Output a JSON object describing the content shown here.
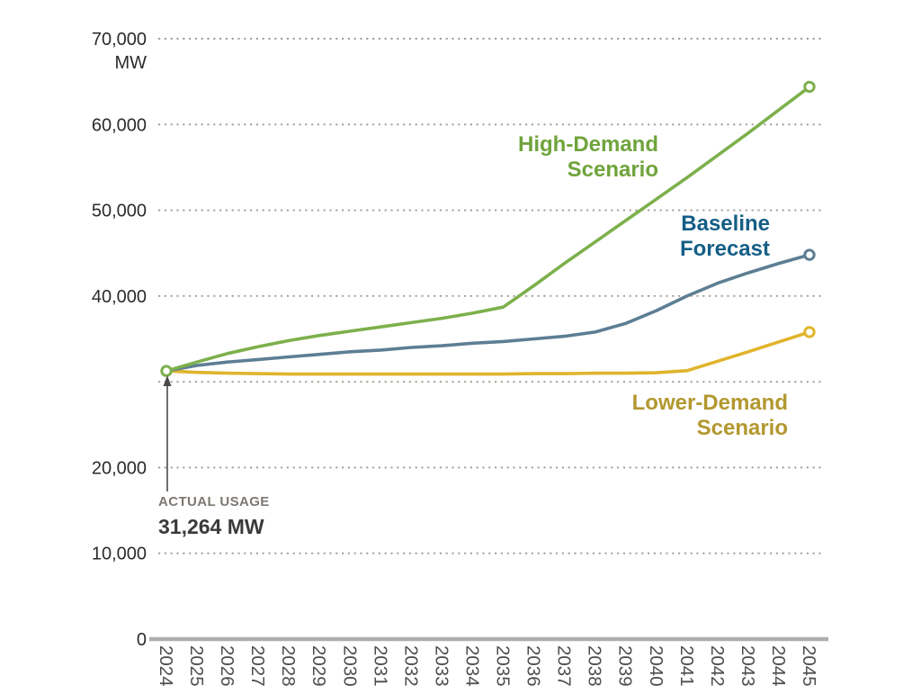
{
  "chart_data": {
    "type": "line",
    "title": "",
    "xlabel": "",
    "ylabel": "MW",
    "ylim": [
      0,
      70000
    ],
    "grid": "dotted-horizontal",
    "legend_position": "inline-labels",
    "x": [
      2024,
      2025,
      2026,
      2027,
      2028,
      2029,
      2030,
      2031,
      2032,
      2033,
      2034,
      2035,
      2036,
      2037,
      2038,
      2039,
      2040,
      2041,
      2042,
      2043,
      2044,
      2045
    ],
    "yticks": [
      {
        "value": 70000,
        "label": "70,000",
        "sub": "MW"
      },
      {
        "value": 60000,
        "label": "60,000"
      },
      {
        "value": 50000,
        "label": "50,000"
      },
      {
        "value": 40000,
        "label": "40,000"
      },
      {
        "value": 30000,
        "label": ""
      },
      {
        "value": 20000,
        "label": "20,000"
      },
      {
        "value": 10000,
        "label": "10,000"
      },
      {
        "value": 0,
        "label": "0"
      }
    ],
    "series": [
      {
        "name": "High-Demand Scenario",
        "label_lines": [
          "High-Demand",
          "Scenario"
        ],
        "color": "#7db04c",
        "label_color": "#6fa43c",
        "end_marker": true,
        "values": [
          31264,
          32300,
          33300,
          34100,
          34800,
          35400,
          35900,
          36400,
          36900,
          37400,
          38000,
          38700,
          41200,
          43800,
          46300,
          48800,
          51300,
          53800,
          56400,
          59000,
          61700,
          64400
        ]
      },
      {
        "name": "Baseline Forecast",
        "label_lines": [
          "Baseline",
          "Forecast"
        ],
        "color": "#5d7e94",
        "label_color": "#145e86",
        "end_marker": true,
        "values": [
          31264,
          31900,
          32300,
          32600,
          32900,
          33200,
          33500,
          33700,
          34000,
          34200,
          34500,
          34700,
          35000,
          35300,
          35800,
          36800,
          38300,
          40000,
          41500,
          42700,
          43800,
          44800
        ]
      },
      {
        "name": "Lower-Demand Scenario",
        "label_lines": [
          "Lower-Demand",
          "Scenario"
        ],
        "color": "#e0b42c",
        "label_color": "#b2982f",
        "end_marker": true,
        "values": [
          31264,
          31100,
          31000,
          30950,
          30900,
          30900,
          30900,
          30900,
          30900,
          30900,
          30900,
          30900,
          30950,
          30950,
          31000,
          31000,
          31050,
          31300,
          32400,
          33500,
          34650,
          35800
        ]
      }
    ],
    "start_marker": {
      "x": 2024,
      "value": 31264,
      "color": "#7db04c"
    },
    "annotation": {
      "eyebrow": "ACTUAL USAGE",
      "value_label": "31,264 MW",
      "points_to_value": 31264
    },
    "axis_color": "#b1adaa",
    "grid_color": "#a39e98"
  }
}
